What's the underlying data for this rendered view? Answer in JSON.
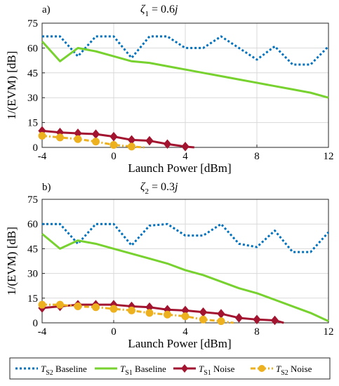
{
  "chart_data": [
    {
      "type": "line",
      "panel_label": "a)",
      "title": {
        "symbol": "ζ",
        "sub": "1",
        "rest": " = 0.6",
        "italic": "j"
      },
      "xlabel": "Launch Power [dBm]",
      "ylabel": "1/(EVM) [dB]",
      "xlim": [
        -4,
        12
      ],
      "ylim": [
        0,
        75
      ],
      "xticks": [
        -4,
        0,
        4,
        8,
        12
      ],
      "yticks": [
        0,
        15,
        30,
        45,
        60,
        75
      ],
      "grid": true,
      "series": [
        {
          "key": "s2_baseline",
          "name": "T_S2 Baseline",
          "x": [
            -4,
            -3,
            -2,
            -1,
            0,
            1,
            2,
            3,
            4,
            5,
            6,
            7,
            8,
            9,
            10,
            11,
            12
          ],
          "values": [
            67,
            67,
            55,
            67,
            67,
            54,
            67,
            67,
            60,
            60,
            67,
            60,
            53,
            61,
            50,
            50,
            61
          ]
        },
        {
          "key": "s1_baseline",
          "name": "T_S1 Baseline",
          "x": [
            -4,
            -3,
            -2,
            -1,
            0,
            1,
            2,
            3,
            4,
            5,
            6,
            7,
            8,
            9,
            10,
            11,
            12
          ],
          "values": [
            64,
            52,
            60,
            58,
            55,
            52,
            51,
            49,
            47,
            45,
            43,
            41,
            39,
            37,
            35,
            33,
            30
          ]
        },
        {
          "key": "s1_noise",
          "name": "T_S1 Noise",
          "x": [
            -4,
            -3,
            -2,
            -1,
            0,
            1,
            2,
            3,
            4,
            4.5
          ],
          "values": [
            10,
            9,
            8.5,
            8,
            6.5,
            4.5,
            4,
            2,
            0.5,
            0
          ]
        },
        {
          "key": "s2_noise",
          "name": "T_S2 Noise",
          "x": [
            -4,
            -3,
            -2,
            -1,
            0,
            1,
            1.7
          ],
          "values": [
            7,
            6,
            5,
            3.5,
            1.5,
            0.5,
            0
          ]
        }
      ]
    },
    {
      "type": "line",
      "panel_label": "b)",
      "title": {
        "symbol": "ζ",
        "sub": "2",
        "rest": " = 0.3",
        "italic": "j"
      },
      "xlabel": "Launch Power [dBm]",
      "ylabel": "1/(EVM) [dB]",
      "xlim": [
        -4,
        12
      ],
      "ylim": [
        0,
        75
      ],
      "xticks": [
        -4,
        0,
        4,
        8,
        12
      ],
      "yticks": [
        0,
        15,
        30,
        45,
        60,
        75
      ],
      "grid": true,
      "series": [
        {
          "key": "s2_baseline",
          "name": "T_S2 Baseline",
          "x": [
            -4,
            -3,
            -2,
            -1,
            0,
            1,
            2,
            3,
            4,
            5,
            6,
            7,
            8,
            9,
            10,
            11,
            12
          ],
          "values": [
            60,
            60,
            48,
            60,
            60,
            47,
            59,
            60,
            53,
            53,
            60,
            48,
            46,
            56,
            43,
            43,
            55
          ]
        },
        {
          "key": "s1_baseline",
          "name": "T_S1 Baseline",
          "x": [
            -4,
            -3,
            -2,
            -1,
            0,
            1,
            2,
            3,
            4,
            5,
            6,
            7,
            8,
            9,
            10,
            11,
            12
          ],
          "values": [
            54,
            45,
            50,
            48,
            45,
            42,
            39,
            36,
            32,
            29,
            25,
            21,
            18,
            14,
            10,
            6,
            1
          ]
        },
        {
          "key": "s1_noise",
          "name": "T_S1 Noise",
          "x": [
            -4,
            -3,
            -2,
            -1,
            0,
            1,
            2,
            3,
            4,
            5,
            6,
            7,
            8,
            9,
            9.5
          ],
          "values": [
            9,
            10,
            11,
            11,
            11,
            10,
            9.5,
            8,
            7.5,
            6.5,
            5.5,
            3,
            2,
            1.5,
            0
          ]
        },
        {
          "key": "s2_noise",
          "name": "T_S2 Noise",
          "x": [
            -4,
            -3,
            -2,
            -1,
            0,
            1,
            2,
            3,
            4,
            5,
            6,
            6.7
          ],
          "values": [
            11,
            11,
            10,
            9.5,
            8.5,
            7.5,
            6,
            5,
            4,
            2,
            1,
            0
          ]
        }
      ]
    }
  ],
  "legend": {
    "placement": "bottom",
    "entries": [
      {
        "key": "s2_baseline",
        "base": "T",
        "sub": "S2",
        "label": " Baseline"
      },
      {
        "key": "s1_baseline",
        "base": "T",
        "sub": "S1",
        "label": " Baseline"
      },
      {
        "key": "s1_noise",
        "base": "T",
        "sub": "S1",
        "label": " Noise"
      },
      {
        "key": "s2_noise",
        "base": "T",
        "sub": "S2",
        "label": " Noise"
      }
    ]
  },
  "colors": {
    "s2_baseline": "#0072BD",
    "s1_baseline": "#77D12E",
    "s1_noise": "#A2142F",
    "s2_noise": "#EDB120",
    "grid": "#d9d9d9",
    "axis": "#262626"
  },
  "styles": {
    "s2_baseline": {
      "dash": "dotted",
      "marker": "none"
    },
    "s1_baseline": {
      "dash": "solid",
      "marker": "none"
    },
    "s1_noise": {
      "dash": "solid",
      "marker": "diamond"
    },
    "s2_noise": {
      "dash": "dash-dot",
      "marker": "circle"
    }
  }
}
